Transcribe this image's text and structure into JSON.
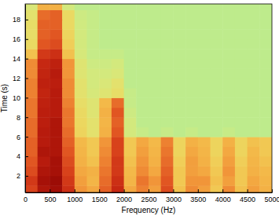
{
  "chart_data": {
    "type": "heatmap",
    "x_label": "Frequency (Hz)",
    "y_label": "Time (s)",
    "xlim": [
      0,
      5000
    ],
    "ylim": [
      0.3,
      19.6
    ],
    "xticks": [
      0,
      500,
      1000,
      1500,
      2000,
      2500,
      3000,
      3500,
      4000,
      4500,
      5000
    ],
    "yticks": [
      2,
      4,
      6,
      8,
      10,
      12,
      14,
      16,
      18
    ],
    "x_bins": [
      0,
      250,
      500,
      750,
      1000,
      1250,
      1500,
      1750,
      2000,
      2250,
      2500,
      2750,
      3000,
      3250,
      3500,
      3750,
      4000,
      4250,
      4500,
      4750,
      5000
    ],
    "y_bins": [
      0,
      1,
      2,
      3,
      4,
      5,
      6,
      7,
      8,
      9,
      10,
      11,
      12,
      13,
      14,
      15,
      16,
      17,
      18,
      19,
      20
    ],
    "zlim": [
      0,
      1
    ],
    "cells": [
      [
        0.78,
        0.9,
        0.93,
        0.82,
        0.62,
        0.58,
        0.72,
        0.84,
        0.58,
        0.66,
        0.6,
        0.76,
        0.52,
        0.64,
        0.6,
        0.5,
        0.64,
        0.52,
        0.6,
        0.56
      ],
      [
        0.8,
        0.92,
        0.94,
        0.8,
        0.6,
        0.55,
        0.7,
        0.82,
        0.55,
        0.68,
        0.62,
        0.74,
        0.5,
        0.62,
        0.62,
        0.52,
        0.6,
        0.5,
        0.58,
        0.55
      ],
      [
        0.76,
        0.9,
        0.92,
        0.78,
        0.58,
        0.56,
        0.68,
        0.8,
        0.54,
        0.64,
        0.58,
        0.72,
        0.5,
        0.6,
        0.58,
        0.5,
        0.62,
        0.5,
        0.56,
        0.54
      ],
      [
        0.74,
        0.88,
        0.92,
        0.76,
        0.56,
        0.52,
        0.66,
        0.8,
        0.52,
        0.62,
        0.56,
        0.7,
        0.48,
        0.6,
        0.56,
        0.48,
        0.6,
        0.48,
        0.55,
        0.52
      ],
      [
        0.72,
        0.9,
        0.9,
        0.74,
        0.55,
        0.5,
        0.64,
        0.78,
        0.5,
        0.6,
        0.55,
        0.68,
        0.46,
        0.58,
        0.55,
        0.46,
        0.58,
        0.46,
        0.54,
        0.5
      ],
      [
        0.72,
        0.88,
        0.9,
        0.72,
        0.54,
        0.5,
        0.62,
        0.78,
        0.5,
        0.58,
        0.54,
        0.66,
        0.46,
        0.56,
        0.54,
        0.46,
        0.56,
        0.46,
        0.52,
        0.5
      ],
      [
        0.7,
        0.88,
        0.9,
        0.7,
        0.46,
        0.4,
        0.56,
        0.74,
        0.34,
        0.3,
        0.28,
        0.3,
        0.28,
        0.3,
        0.28,
        0.28,
        0.3,
        0.28,
        0.28,
        0.28
      ],
      [
        0.7,
        0.87,
        0.9,
        0.68,
        0.45,
        0.4,
        0.55,
        0.72,
        0.34,
        0.28,
        0.28,
        0.28,
        0.28,
        0.28,
        0.28,
        0.28,
        0.28,
        0.28,
        0.28,
        0.28
      ],
      [
        0.68,
        0.87,
        0.88,
        0.68,
        0.44,
        0.38,
        0.56,
        0.74,
        0.32,
        0.28,
        0.28,
        0.28,
        0.28,
        0.28,
        0.28,
        0.28,
        0.28,
        0.28,
        0.28,
        0.28
      ],
      [
        0.68,
        0.86,
        0.88,
        0.66,
        0.42,
        0.38,
        0.54,
        0.7,
        0.3,
        0.28,
        0.28,
        0.28,
        0.28,
        0.28,
        0.28,
        0.28,
        0.28,
        0.28,
        0.28,
        0.28
      ],
      [
        0.66,
        0.85,
        0.88,
        0.64,
        0.4,
        0.35,
        0.38,
        0.42,
        0.3,
        0.28,
        0.28,
        0.28,
        0.28,
        0.28,
        0.28,
        0.28,
        0.28,
        0.28,
        0.28,
        0.28
      ],
      [
        0.66,
        0.86,
        0.87,
        0.64,
        0.4,
        0.34,
        0.36,
        0.4,
        0.28,
        0.28,
        0.28,
        0.28,
        0.28,
        0.28,
        0.28,
        0.28,
        0.28,
        0.28,
        0.28,
        0.28
      ],
      [
        0.64,
        0.85,
        0.88,
        0.62,
        0.38,
        0.34,
        0.34,
        0.36,
        0.28,
        0.28,
        0.28,
        0.28,
        0.28,
        0.28,
        0.28,
        0.28,
        0.28,
        0.28,
        0.28,
        0.28
      ],
      [
        0.64,
        0.84,
        0.86,
        0.62,
        0.38,
        0.32,
        0.32,
        0.34,
        0.28,
        0.28,
        0.28,
        0.28,
        0.28,
        0.28,
        0.28,
        0.28,
        0.28,
        0.28,
        0.28,
        0.28
      ],
      [
        0.52,
        0.8,
        0.82,
        0.52,
        0.35,
        0.3,
        0.3,
        0.3,
        0.28,
        0.28,
        0.28,
        0.28,
        0.28,
        0.28,
        0.28,
        0.28,
        0.28,
        0.28,
        0.28,
        0.28
      ],
      [
        0.44,
        0.74,
        0.76,
        0.48,
        0.34,
        0.3,
        0.28,
        0.28,
        0.28,
        0.28,
        0.28,
        0.28,
        0.28,
        0.28,
        0.28,
        0.28,
        0.28,
        0.28,
        0.28,
        0.28
      ],
      [
        0.42,
        0.72,
        0.74,
        0.46,
        0.34,
        0.3,
        0.28,
        0.28,
        0.28,
        0.28,
        0.28,
        0.28,
        0.28,
        0.28,
        0.28,
        0.28,
        0.28,
        0.28,
        0.28,
        0.28
      ],
      [
        0.42,
        0.72,
        0.72,
        0.44,
        0.33,
        0.3,
        0.28,
        0.28,
        0.28,
        0.28,
        0.28,
        0.28,
        0.28,
        0.28,
        0.28,
        0.28,
        0.28,
        0.28,
        0.28,
        0.28
      ],
      [
        0.4,
        0.7,
        0.72,
        0.44,
        0.32,
        0.3,
        0.28,
        0.28,
        0.28,
        0.28,
        0.28,
        0.28,
        0.28,
        0.28,
        0.28,
        0.28,
        0.28,
        0.28,
        0.28,
        0.28
      ],
      [
        0.36,
        0.56,
        0.56,
        0.34,
        0.28,
        0.28,
        0.28,
        0.28,
        0.28,
        0.28,
        0.28,
        0.28,
        0.28,
        0.28,
        0.28,
        0.28,
        0.28,
        0.28,
        0.28,
        0.28
      ]
    ]
  }
}
